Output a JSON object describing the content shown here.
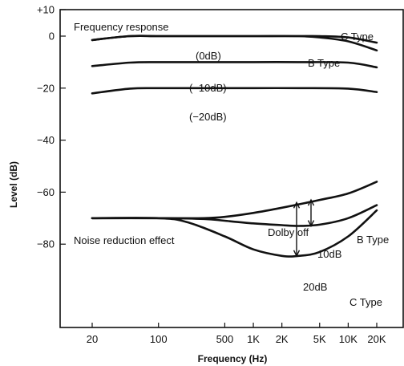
{
  "chart_data": {
    "type": "line",
    "title": "",
    "xlabel": "Frequency (Hz)",
    "ylabel": "Level (dB)",
    "x_scale": "log",
    "xlim": [
      20,
      20000
    ],
    "ylim": [
      -88,
      10
    ],
    "x_ticks": [
      {
        "value": 20,
        "label": "20"
      },
      {
        "value": 100,
        "label": "100"
      },
      {
        "value": 500,
        "label": "500"
      },
      {
        "value": 1000,
        "label": "1K"
      },
      {
        "value": 2000,
        "label": "2K"
      },
      {
        "value": 5000,
        "label": "5K"
      },
      {
        "value": 10000,
        "label": "10K"
      },
      {
        "value": 20000,
        "label": "20K"
      }
    ],
    "y_ticks": [
      {
        "value": 10,
        "label": "+10"
      },
      {
        "value": 0,
        "label": "0"
      },
      {
        "value": -20,
        "label": "-20"
      },
      {
        "value": -40,
        "label": "-40"
      },
      {
        "value": -60,
        "label": "-60"
      },
      {
        "value": -80,
        "label": "-80"
      }
    ],
    "grid": false,
    "sections": [
      "Frequency response",
      "Noise reduction effect"
    ],
    "series": [
      {
        "name": "C Type",
        "x": [
          20,
          50,
          100,
          300,
          1000,
          3000,
          5000,
          10000,
          20000
        ],
        "values": [
          -1.5,
          0,
          0,
          0,
          0,
          0,
          0,
          -0.5,
          -2.5
        ]
      },
      {
        "name": "B Type",
        "x": [
          20,
          50,
          100,
          300,
          1000,
          3000,
          5000,
          10000,
          20000
        ],
        "values": [
          -1.5,
          0,
          0,
          0,
          0,
          0,
          -0.5,
          -2,
          -5.5
        ]
      },
      {
        "x": [
          20,
          50,
          100,
          300,
          1000,
          3000,
          10000,
          20000
        ],
        "values": [
          -11.5,
          -10.2,
          -10,
          -10,
          -10,
          -10,
          -10.2,
          -12
        ]
      },
      {
        "x": [
          20,
          50,
          100,
          300,
          1000,
          3000,
          10000,
          20000
        ],
        "values": [
          -22,
          -20.2,
          -20,
          -20,
          -20,
          -20,
          -20.2,
          -21.5
        ]
      },
      {
        "name": "Dolby off",
        "x": [
          20,
          100,
          300,
          500,
          1000,
          2000,
          5000,
          10000,
          20000
        ],
        "values": [
          -70,
          -70,
          -70,
          -69.5,
          -68,
          -66,
          -63,
          -60.5,
          -56
        ]
      },
      {
        "name": "B Type",
        "x": [
          20,
          100,
          300,
          500,
          1000,
          2000,
          3000,
          5000,
          10000,
          20000
        ],
        "values": [
          -70,
          -70,
          -70.3,
          -71,
          -72,
          -72.7,
          -73,
          -72.5,
          -70,
          -65
        ]
      },
      {
        "name": "C Type",
        "x": [
          20,
          100,
          200,
          500,
          1000,
          2000,
          3000,
          5000,
          10000,
          20000
        ],
        "values": [
          -70,
          -70,
          -71.5,
          -77,
          -82,
          -84.5,
          -84.5,
          -83,
          -77,
          -67
        ]
      }
    ],
    "curve_labels": [
      {
        "text": "(0dB)"
      },
      {
        "text": "(-10dB)"
      },
      {
        "text": "(-20dB)"
      }
    ],
    "annotations": [
      {
        "text": "10dB",
        "at_x": 3000,
        "from": -73,
        "to": -63
      },
      {
        "text": "20dB",
        "at_x": 3000,
        "from": -84.5,
        "to": -64
      }
    ]
  }
}
